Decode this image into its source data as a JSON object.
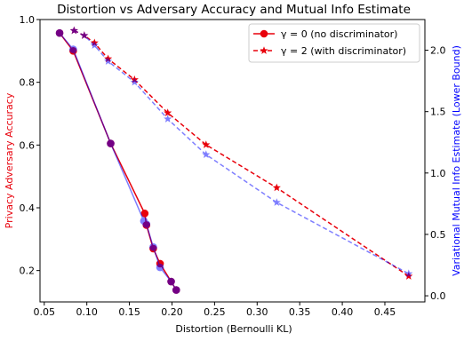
{
  "chart_data": {
    "type": "line",
    "title": "Distortion vs Adversary Accuracy and Mutual Info Estimate",
    "xlabel": "Distortion (Bernoulli KL)",
    "ylabel_left": "Privacy Adversary Accuracy",
    "ylabel_right": "Variational Mutual Info Estimate (Lower Bound)",
    "xlim": [
      0.045,
      0.497
    ],
    "ylim_left": [
      0.1,
      1.0
    ],
    "ylim_right": [
      -0.05,
      2.25
    ],
    "xticks": [
      "0.05",
      "0.10",
      "0.15",
      "0.20",
      "0.25",
      "0.30",
      "0.35",
      "0.40",
      "0.45"
    ],
    "yticks_left": [
      "0.2",
      "0.4",
      "0.6",
      "0.8",
      "1.0"
    ],
    "yticks_right": [
      "0.0",
      "0.5",
      "1.0",
      "1.5",
      "2.0"
    ],
    "legend_position": "top-right",
    "grid": false,
    "legend": [
      {
        "label": "γ = 0 (no discriminator)",
        "color": "#e8000b",
        "linestyle": "solid",
        "marker": "circle"
      },
      {
        "label": "γ = 2 (with discriminator)",
        "color": "#e8000b",
        "linestyle": "dashed",
        "marker": "star"
      }
    ],
    "series": [
      {
        "axis": "left",
        "color": "#e8000b",
        "linestyle": "solid",
        "marker": "circle",
        "x": [
          0.068,
          0.084,
          0.128,
          0.168,
          0.17,
          0.178,
          0.186,
          0.199,
          0.205
        ],
        "y": [
          0.957,
          0.9,
          0.605,
          0.382,
          0.345,
          0.27,
          0.222,
          0.165,
          0.138
        ]
      },
      {
        "axis": "left",
        "color": "#0000ff",
        "alpha": 0.5,
        "linestyle": "solid",
        "marker": "circle",
        "x": [
          0.068,
          0.084,
          0.128,
          0.167,
          0.17,
          0.178,
          0.186,
          0.199,
          0.205
        ],
        "y": [
          0.957,
          0.905,
          0.605,
          0.358,
          0.348,
          0.275,
          0.21,
          0.165,
          0.138
        ]
      },
      {
        "axis": "right",
        "color": "#e8000b",
        "linestyle": "dashed",
        "marker": "star",
        "x": [
          0.085,
          0.097,
          0.109,
          0.125,
          0.156,
          0.195,
          0.24,
          0.323,
          0.478
        ],
        "y": [
          2.16,
          2.12,
          2.06,
          1.93,
          1.76,
          1.49,
          1.23,
          0.88,
          0.16
        ]
      },
      {
        "axis": "right",
        "color": "#0000ff",
        "alpha": 0.5,
        "linestyle": "dashed",
        "marker": "star",
        "x": [
          0.085,
          0.097,
          0.109,
          0.125,
          0.156,
          0.195,
          0.24,
          0.323,
          0.478
        ],
        "y": [
          2.16,
          2.12,
          2.04,
          1.91,
          1.74,
          1.44,
          1.15,
          0.76,
          0.18
        ]
      }
    ]
  }
}
